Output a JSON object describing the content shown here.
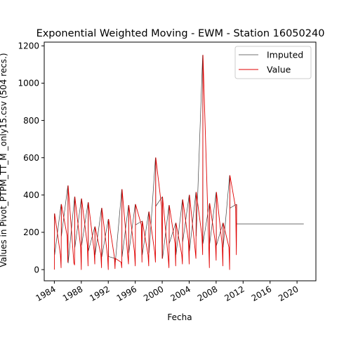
{
  "chart_data": {
    "type": "line",
    "title": "Exponential Weighted Moving - EWM - Station 16050240",
    "xlabel": "Fecha",
    "ylabel": "Values in Pivot_PTPM_TT_M _only15.csv (504 recs.)",
    "xlim": [
      1982.5,
      2022.8
    ],
    "ylim": [
      -60,
      1220
    ],
    "x_ticks": [
      1984,
      1988,
      1992,
      1996,
      2000,
      2004,
      2008,
      2012,
      2016,
      2020
    ],
    "x_tick_labels": [
      "1984",
      "1988",
      "1992",
      "1996",
      "2000",
      "2004",
      "2008",
      "2012",
      "2016",
      "2020"
    ],
    "y_ticks": [
      0,
      200,
      400,
      600,
      800,
      1000,
      1200
    ],
    "y_tick_labels": [
      "0",
      "200",
      "400",
      "600",
      "800",
      "1000",
      "1200"
    ],
    "legend_position": "top-right",
    "series": [
      {
        "name": "Imputed",
        "color": "#404040",
        "x": [
          1984.0,
          1984.05,
          1985.0,
          1985.05,
          1986.0,
          1986.05,
          1987.0,
          1987.05,
          1988.0,
          1988.05,
          1989.0,
          1989.05,
          1990.0,
          1990.05,
          1991.0,
          1991.05,
          1992.0,
          1992.05,
          1993.0,
          1993.05,
          1994.0,
          1994.05,
          1995.0,
          1995.05,
          1996.0,
          1996.05,
          1997.0,
          1997.05,
          1998.0,
          1998.05,
          1999.0,
          1999.05,
          2000.0,
          2000.05,
          2001.0,
          2001.05,
          2002.0,
          2002.05,
          2003.0,
          2003.05,
          2004.0,
          2004.05,
          2005.0,
          2005.05,
          2006.0,
          2006.05,
          2007.0,
          2007.05,
          2008.0,
          2008.05,
          2009.0,
          2009.05,
          2010.0,
          2010.05,
          2011.0,
          2011.05,
          2021.0
        ],
        "y": [
          300,
          80,
          350,
          180,
          450,
          35,
          390,
          120,
          380,
          130,
          360,
          100,
          230,
          80,
          330,
          70,
          270,
          70,
          60,
          40,
          430,
          70,
          345,
          90,
          350,
          240,
          260,
          80,
          310,
          90,
          600,
          340,
          390,
          60,
          345,
          140,
          250,
          80,
          375,
          150,
          400,
          100,
          415,
          180,
          1150,
          140,
          355,
          140,
          415,
          130,
          250,
          120,
          505,
          330,
          350,
          245,
          245
        ]
      },
      {
        "name": "Value",
        "color": "#e00000",
        "x": [
          1984.0,
          1984.05,
          1984.9,
          1985.0,
          1985.05,
          1985.9,
          1986.0,
          1986.05,
          1986.9,
          1987.0,
          1987.05,
          1987.9,
          1988.0,
          1988.05,
          1988.9,
          1989.0,
          1989.05,
          1989.9,
          1990.0,
          1990.05,
          1990.9,
          1991.0,
          1991.05,
          1991.9,
          1992.0,
          1992.05,
          1992.9,
          1993.0,
          1993.05,
          1993.9,
          1994.0,
          1994.05,
          1994.9,
          1995.0,
          1995.05,
          1995.9,
          1996.0,
          1996.05,
          1996.9,
          1997.0,
          1997.05,
          1997.9,
          1998.0,
          1998.05,
          1998.9,
          1999.0,
          1999.05,
          1999.9,
          2000.0,
          2000.05,
          2000.9,
          2001.0,
          2001.05,
          2001.9,
          2002.0,
          2002.05,
          2002.9,
          2003.0,
          2003.05,
          2003.9,
          2004.0,
          2004.05,
          2004.9,
          2005.0,
          2005.05,
          2005.9,
          2006.0,
          2006.05,
          2006.9,
          2007.0,
          2007.05,
          2007.9,
          2008.0,
          2008.05,
          2008.9,
          2009.0,
          2009.05,
          2009.9,
          2010.0,
          2010.05,
          2010.9,
          2011.0,
          2011.05
        ],
        "y": [
          0,
          300,
          80,
          10,
          350,
          180,
          40,
          450,
          35,
          25,
          390,
          120,
          0,
          380,
          130,
          20,
          360,
          100,
          30,
          230,
          80,
          10,
          330,
          70,
          0,
          270,
          70,
          5,
          60,
          40,
          10,
          430,
          70,
          30,
          345,
          90,
          20,
          350,
          240,
          40,
          260,
          80,
          20,
          310,
          90,
          40,
          600,
          340,
          60,
          390,
          60,
          10,
          345,
          140,
          20,
          250,
          80,
          30,
          375,
          150,
          30,
          400,
          100,
          60,
          415,
          180,
          80,
          1150,
          140,
          10,
          355,
          140,
          50,
          415,
          130,
          20,
          250,
          120,
          0,
          505,
          330,
          80,
          350
        ]
      }
    ]
  }
}
